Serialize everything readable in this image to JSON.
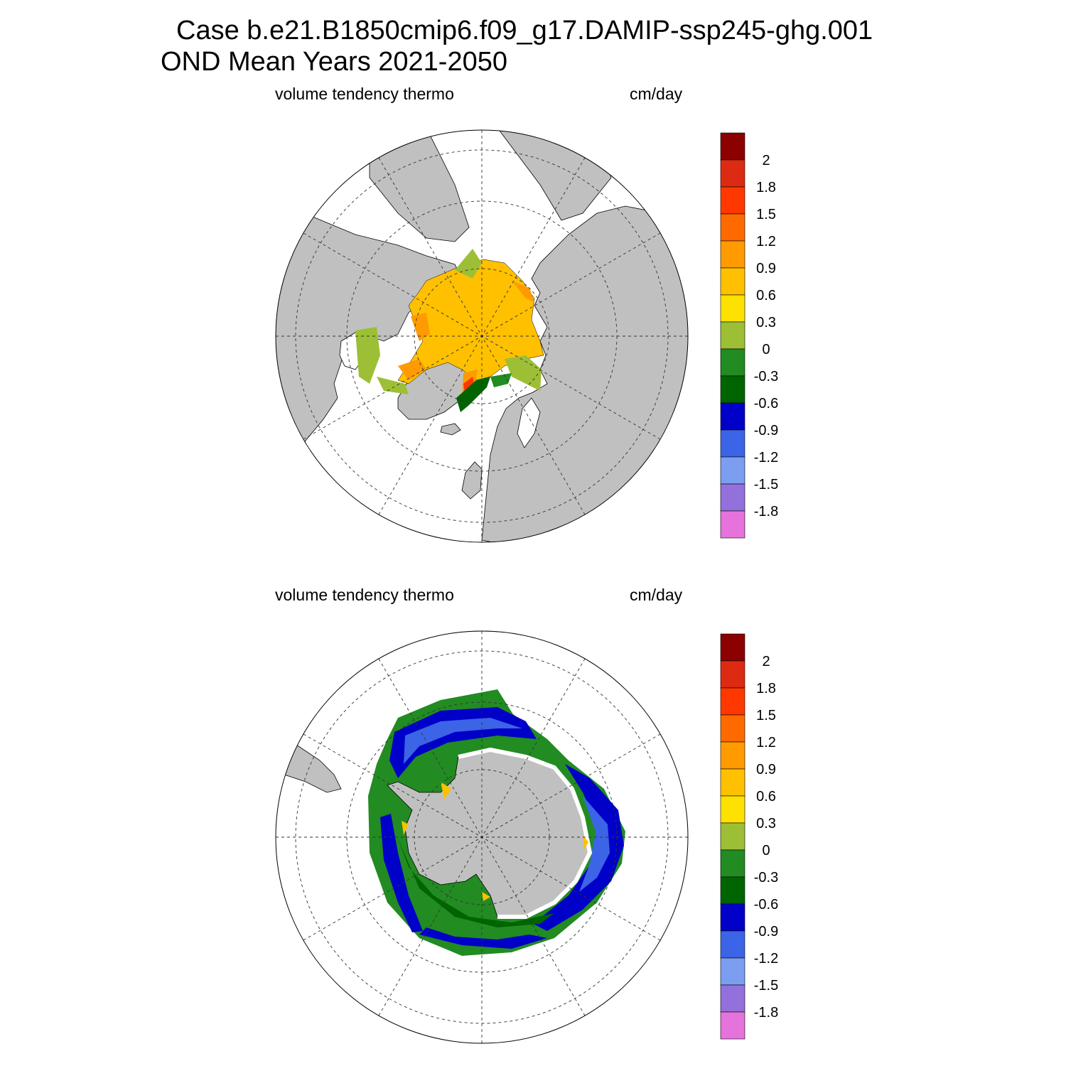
{
  "title": {
    "line1": "Case b.e21.B1850cmip6.f09_g17.DAMIP-ssp245-ghg.001",
    "line2": "OND Mean   Years 2021-2050"
  },
  "panels": [
    {
      "id": "north",
      "left_label": "volume tendency thermo",
      "right_label": "cm/day",
      "hemisphere": "Arctic (north polar stereographic)"
    },
    {
      "id": "south",
      "left_label": "volume tendency thermo",
      "right_label": "cm/day",
      "hemisphere": "Antarctic (south polar stereographic)"
    }
  ],
  "colorbar": {
    "labels": [
      "2",
      "1.8",
      "1.5",
      "1.2",
      "0.9",
      "0.6",
      "0.3",
      "0",
      "-0.3",
      "-0.6",
      "-0.9",
      "-1.2",
      "-1.5",
      "-1.8"
    ],
    "colors": [
      "#8b0000",
      "#dc2b12",
      "#ff3800",
      "#ff6a00",
      "#ff9a00",
      "#ffc000",
      "#ffe100",
      "#9dbf35",
      "#228b22",
      "#006400",
      "#0000c8",
      "#3c64e6",
      "#7c9ef0",
      "#9370db",
      "#e673dc"
    ]
  },
  "map_colors": {
    "land": "#c0c0c0",
    "ocean": "#ffffff"
  }
}
